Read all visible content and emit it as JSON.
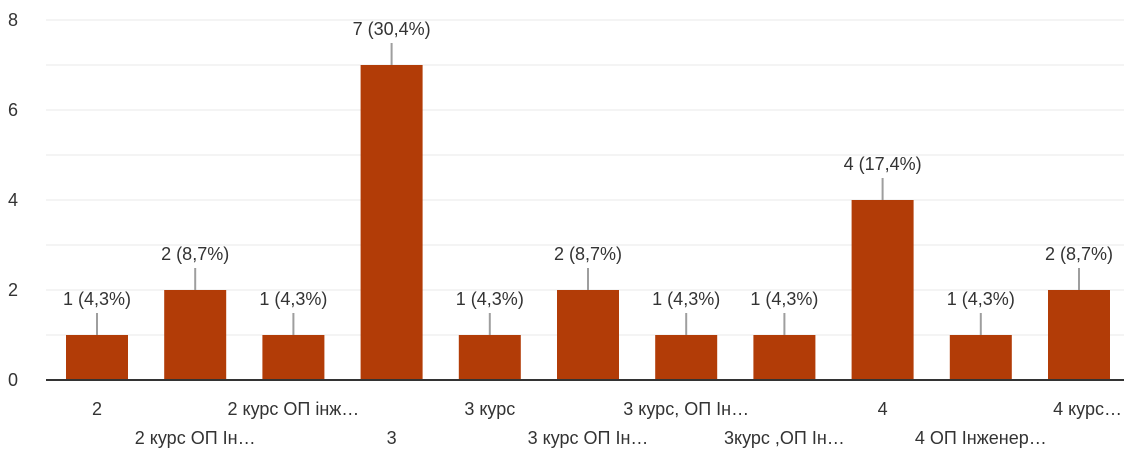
{
  "chart_data": {
    "type": "bar",
    "categories": [
      "2",
      "2 курс ОП Ін…",
      "2 курс ОП інж…",
      "3",
      "3 курс",
      "3 курс ОП Ін…",
      "3 курс, ОП Ін…",
      "3курс ,ОП Ін…",
      "4",
      "4 ОП Інженер…",
      "4 курс…"
    ],
    "values": [
      1,
      2,
      1,
      7,
      1,
      2,
      1,
      1,
      4,
      1,
      2
    ],
    "data_labels": [
      "1 (4,3%)",
      "2 (8,7%)",
      "1 (4,3%)",
      "7 (30,4%)",
      "1 (4,3%)",
      "2 (8,7%)",
      "1 (4,3%)",
      "1 (4,3%)",
      "4 (17,4%)",
      "1 (4,3%)",
      "2 (8,7%)"
    ],
    "ylim": [
      0,
      8
    ],
    "yticks": [
      0,
      2,
      4,
      6,
      8
    ],
    "grid": true,
    "bar_color": "#b23c07",
    "grid_color": "#e8e8e8",
    "axis_color": "#333333"
  }
}
